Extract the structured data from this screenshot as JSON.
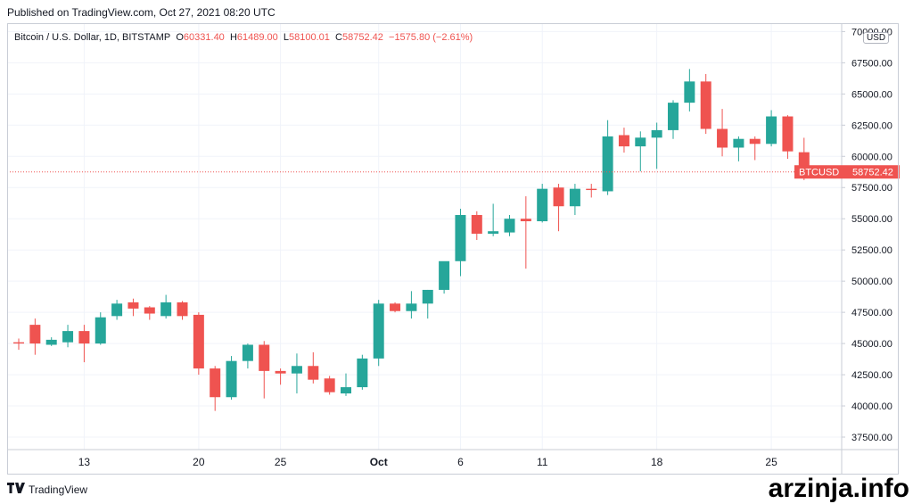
{
  "header": {
    "published": "Published on TradingView.com, Oct 27, 2021 08:20 UTC"
  },
  "legend": {
    "name": "Bitcoin / U.S. Dollar, 1D, BITSTAMP",
    "o_key": "O",
    "o": "60331.40",
    "h_key": "H",
    "h": "61489.00",
    "l_key": "L",
    "l": "58100.01",
    "c_key": "C",
    "c": "58752.42",
    "change": "−1575.80 (−2.61%)"
  },
  "currency_badge": "USD",
  "price_tag": {
    "symbol": "BTCUSD",
    "value": "58752.42",
    "price": 58752.42
  },
  "footer": {
    "brand": "TradingView",
    "logo": "tradingview-logo-icon"
  },
  "watermark": "arzinja.info",
  "colors": {
    "up": "#26a69a",
    "down": "#ef5350",
    "grid": "#f0f3fa",
    "axis_text": "#131722"
  },
  "chart_data": {
    "type": "candlestick",
    "ylim": [
      36500,
      70600
    ],
    "y_ticks": [
      "37500.00",
      "40000.00",
      "42500.00",
      "45000.00",
      "47500.00",
      "50000.00",
      "52500.00",
      "55000.00",
      "57500.00",
      "60000.00",
      "62500.00",
      "65000.00",
      "67500.00",
      "70000.00"
    ],
    "x_ticks": [
      {
        "index": 4,
        "label": "13"
      },
      {
        "index": 11,
        "label": "20"
      },
      {
        "index": 16,
        "label": "25"
      },
      {
        "index": 22,
        "label": "Oct"
      },
      {
        "index": 27,
        "label": "6"
      },
      {
        "index": 32,
        "label": "11"
      },
      {
        "index": 39,
        "label": "18"
      },
      {
        "index": 46,
        "label": "25"
      }
    ],
    "candles": [
      {
        "o": 45100,
        "h": 45400,
        "l": 44500,
        "c": 45000
      },
      {
        "o": 46500,
        "h": 47000,
        "l": 44100,
        "c": 45000
      },
      {
        "o": 44900,
        "h": 45500,
        "l": 44800,
        "c": 45300
      },
      {
        "o": 45100,
        "h": 46500,
        "l": 44700,
        "c": 46000
      },
      {
        "o": 46000,
        "h": 46500,
        "l": 43500,
        "c": 45000
      },
      {
        "o": 45000,
        "h": 47500,
        "l": 44900,
        "c": 47100
      },
      {
        "o": 47200,
        "h": 48500,
        "l": 46900,
        "c": 48200
      },
      {
        "o": 48300,
        "h": 48600,
        "l": 47200,
        "c": 47800
      },
      {
        "o": 47900,
        "h": 48000,
        "l": 46900,
        "c": 47400
      },
      {
        "o": 47200,
        "h": 48900,
        "l": 47000,
        "c": 48300
      },
      {
        "o": 48300,
        "h": 48400,
        "l": 46900,
        "c": 47200
      },
      {
        "o": 47300,
        "h": 47500,
        "l": 42500,
        "c": 43000
      },
      {
        "o": 43000,
        "h": 43200,
        "l": 39600,
        "c": 40700
      },
      {
        "o": 40700,
        "h": 44000,
        "l": 40500,
        "c": 43600
      },
      {
        "o": 43600,
        "h": 45000,
        "l": 43000,
        "c": 44900
      },
      {
        "o": 44900,
        "h": 45200,
        "l": 40600,
        "c": 42800
      },
      {
        "o": 42800,
        "h": 43000,
        "l": 41700,
        "c": 42600
      },
      {
        "o": 42600,
        "h": 44200,
        "l": 41000,
        "c": 43200
      },
      {
        "o": 43200,
        "h": 44300,
        "l": 41800,
        "c": 42100
      },
      {
        "o": 42200,
        "h": 42400,
        "l": 40900,
        "c": 41100
      },
      {
        "o": 41000,
        "h": 42600,
        "l": 40800,
        "c": 41500
      },
      {
        "o": 41500,
        "h": 44100,
        "l": 41300,
        "c": 43800
      },
      {
        "o": 43800,
        "h": 48500,
        "l": 43200,
        "c": 48200
      },
      {
        "o": 48200,
        "h": 48300,
        "l": 47500,
        "c": 47600
      },
      {
        "o": 47600,
        "h": 49200,
        "l": 47000,
        "c": 48200
      },
      {
        "o": 48200,
        "h": 49300,
        "l": 47000,
        "c": 49300
      },
      {
        "o": 49300,
        "h": 51500,
        "l": 49000,
        "c": 51600
      },
      {
        "o": 51600,
        "h": 55800,
        "l": 50400,
        "c": 55300
      },
      {
        "o": 55300,
        "h": 55600,
        "l": 53300,
        "c": 53800
      },
      {
        "o": 53800,
        "h": 56200,
        "l": 53600,
        "c": 54000
      },
      {
        "o": 53900,
        "h": 55300,
        "l": 53600,
        "c": 55000
      },
      {
        "o": 55000,
        "h": 56800,
        "l": 51000,
        "c": 54800
      },
      {
        "o": 54800,
        "h": 57800,
        "l": 54700,
        "c": 57400
      },
      {
        "o": 57500,
        "h": 57800,
        "l": 54000,
        "c": 56000
      },
      {
        "o": 56000,
        "h": 57800,
        "l": 55300,
        "c": 57400
      },
      {
        "o": 57400,
        "h": 57800,
        "l": 56700,
        "c": 57300
      },
      {
        "o": 57200,
        "h": 62900,
        "l": 56900,
        "c": 61600
      },
      {
        "o": 61700,
        "h": 62300,
        "l": 60300,
        "c": 60800
      },
      {
        "o": 60800,
        "h": 62000,
        "l": 58800,
        "c": 61500
      },
      {
        "o": 61500,
        "h": 62700,
        "l": 59000,
        "c": 62100
      },
      {
        "o": 62100,
        "h": 64500,
        "l": 61400,
        "c": 64300
      },
      {
        "o": 64300,
        "h": 67000,
        "l": 63600,
        "c": 66000
      },
      {
        "o": 66000,
        "h": 66600,
        "l": 61800,
        "c": 62200
      },
      {
        "o": 62200,
        "h": 63800,
        "l": 60000,
        "c": 60700
      },
      {
        "o": 60700,
        "h": 61600,
        "l": 59600,
        "c": 61400
      },
      {
        "o": 61400,
        "h": 61600,
        "l": 59700,
        "c": 61000
      },
      {
        "o": 61000,
        "h": 63700,
        "l": 60800,
        "c": 63200
      },
      {
        "o": 63200,
        "h": 63300,
        "l": 59800,
        "c": 60400
      },
      {
        "o": 60331.4,
        "h": 61489,
        "l": 58100.01,
        "c": 58752.42
      }
    ]
  }
}
